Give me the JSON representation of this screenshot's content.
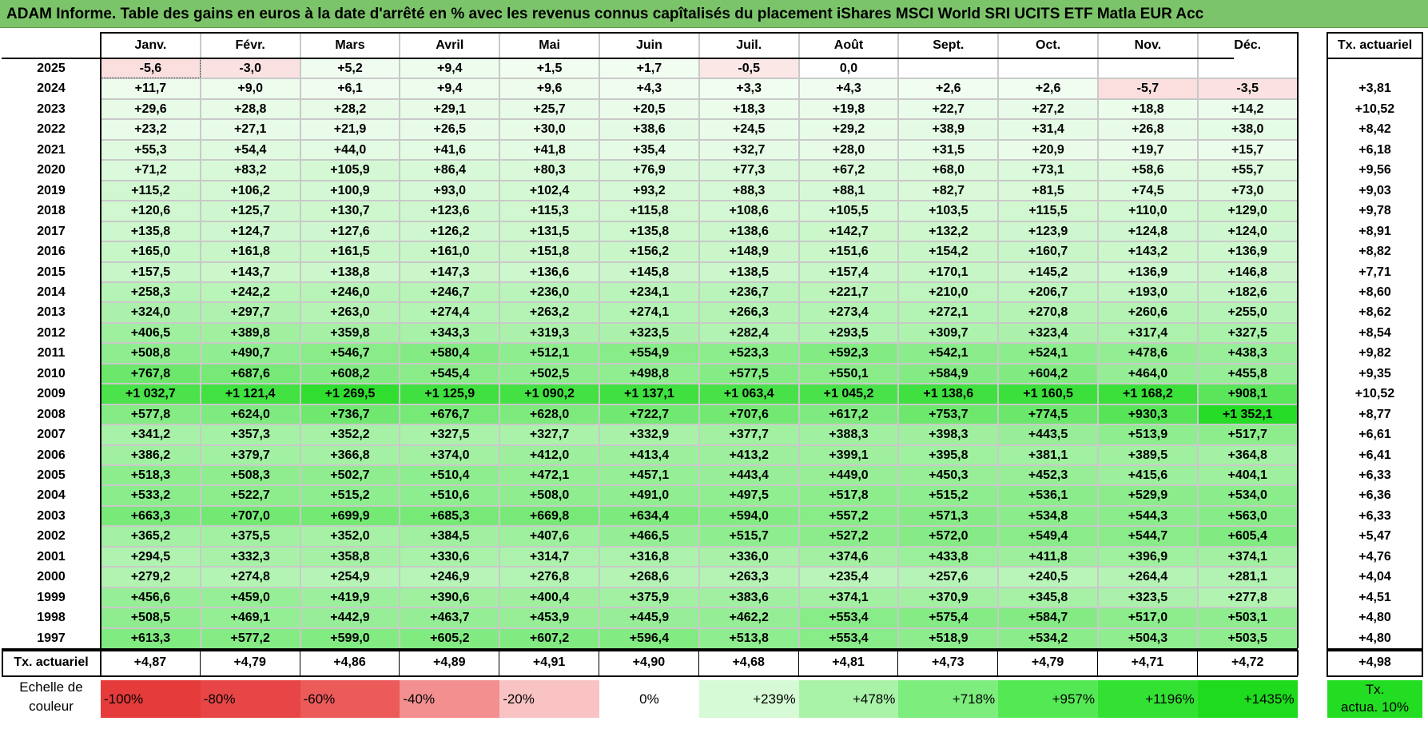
{
  "title": "ADAM Informe. Table des gains en euros à la date d'arrêté en % avec les revenus connus capîtalisés du placement iShares MSCI World SRI UCITS ETF Matla EUR Acc",
  "chart_data": {
    "type": "heatmap",
    "columns": [
      "Janv.",
      "Févr.",
      "Mars",
      "Avril",
      "Mai",
      "Juin",
      "Juil.",
      "Août",
      "Sept.",
      "Oct.",
      "Nov.",
      "Déc."
    ],
    "rate_header": "Tx. actuariel",
    "rows": [
      {
        "year": "2025",
        "values": [
          "-5,6",
          "-3,0",
          "+5,2",
          "+9,4",
          "+1,5",
          "+1,7",
          "-0,5",
          "0,0",
          "",
          "",
          "",
          ""
        ],
        "rate": ""
      },
      {
        "year": "2024",
        "values": [
          "+11,7",
          "+9,0",
          "+6,1",
          "+9,4",
          "+9,6",
          "+4,3",
          "+3,3",
          "+4,3",
          "+2,6",
          "+2,6",
          "-5,7",
          "-3,5"
        ],
        "rate": "+3,81"
      },
      {
        "year": "2023",
        "values": [
          "+29,6",
          "+28,8",
          "+28,2",
          "+29,1",
          "+25,7",
          "+20,5",
          "+18,3",
          "+19,8",
          "+22,7",
          "+27,2",
          "+18,8",
          "+14,2"
        ],
        "rate": "+10,52"
      },
      {
        "year": "2022",
        "values": [
          "+23,2",
          "+27,1",
          "+21,9",
          "+26,5",
          "+30,0",
          "+38,6",
          "+24,5",
          "+29,2",
          "+38,9",
          "+31,4",
          "+26,8",
          "+38,0"
        ],
        "rate": "+8,42"
      },
      {
        "year": "2021",
        "values": [
          "+55,3",
          "+54,4",
          "+44,0",
          "+41,6",
          "+41,8",
          "+35,4",
          "+32,7",
          "+28,0",
          "+31,5",
          "+20,9",
          "+19,7",
          "+15,7"
        ],
        "rate": "+6,18"
      },
      {
        "year": "2020",
        "values": [
          "+71,2",
          "+83,2",
          "+105,9",
          "+86,4",
          "+80,3",
          "+76,9",
          "+77,3",
          "+67,2",
          "+68,0",
          "+73,1",
          "+58,6",
          "+55,7"
        ],
        "rate": "+9,56"
      },
      {
        "year": "2019",
        "values": [
          "+115,2",
          "+106,2",
          "+100,9",
          "+93,0",
          "+102,4",
          "+93,2",
          "+88,3",
          "+88,1",
          "+82,7",
          "+81,5",
          "+74,5",
          "+73,0"
        ],
        "rate": "+9,03"
      },
      {
        "year": "2018",
        "values": [
          "+120,6",
          "+125,7",
          "+130,7",
          "+123,6",
          "+115,3",
          "+115,8",
          "+108,6",
          "+105,5",
          "+103,5",
          "+115,5",
          "+110,0",
          "+129,0"
        ],
        "rate": "+9,78"
      },
      {
        "year": "2017",
        "values": [
          "+135,8",
          "+124,7",
          "+127,6",
          "+126,2",
          "+131,5",
          "+135,8",
          "+138,6",
          "+142,7",
          "+132,2",
          "+123,9",
          "+124,8",
          "+124,0"
        ],
        "rate": "+8,91"
      },
      {
        "year": "2016",
        "values": [
          "+165,0",
          "+161,8",
          "+161,5",
          "+161,0",
          "+151,8",
          "+156,2",
          "+148,9",
          "+151,6",
          "+154,2",
          "+160,7",
          "+143,2",
          "+136,9"
        ],
        "rate": "+8,82"
      },
      {
        "year": "2015",
        "values": [
          "+157,5",
          "+143,7",
          "+138,8",
          "+147,3",
          "+136,6",
          "+145,8",
          "+138,5",
          "+157,4",
          "+170,1",
          "+145,2",
          "+136,9",
          "+146,8"
        ],
        "rate": "+7,71"
      },
      {
        "year": "2014",
        "values": [
          "+258,3",
          "+242,2",
          "+246,0",
          "+246,7",
          "+236,0",
          "+234,1",
          "+236,7",
          "+221,7",
          "+210,0",
          "+206,7",
          "+193,0",
          "+182,6"
        ],
        "rate": "+8,60"
      },
      {
        "year": "2013",
        "values": [
          "+324,0",
          "+297,7",
          "+263,0",
          "+274,4",
          "+263,2",
          "+274,1",
          "+266,3",
          "+273,4",
          "+272,1",
          "+270,8",
          "+260,6",
          "+255,0"
        ],
        "rate": "+8,62"
      },
      {
        "year": "2012",
        "values": [
          "+406,5",
          "+389,8",
          "+359,8",
          "+343,3",
          "+319,3",
          "+323,5",
          "+282,4",
          "+293,5",
          "+309,7",
          "+323,4",
          "+317,4",
          "+327,5"
        ],
        "rate": "+8,54"
      },
      {
        "year": "2011",
        "values": [
          "+508,8",
          "+490,7",
          "+546,7",
          "+580,4",
          "+512,1",
          "+554,9",
          "+523,3",
          "+592,3",
          "+542,1",
          "+524,1",
          "+478,6",
          "+438,3"
        ],
        "rate": "+9,82"
      },
      {
        "year": "2010",
        "values": [
          "+767,8",
          "+687,6",
          "+608,2",
          "+545,4",
          "+502,5",
          "+498,8",
          "+577,5",
          "+550,1",
          "+584,9",
          "+604,2",
          "+464,0",
          "+455,8"
        ],
        "rate": "+9,35"
      },
      {
        "year": "2009",
        "values": [
          "+1 032,7",
          "+1 121,4",
          "+1 269,5",
          "+1 125,9",
          "+1 090,2",
          "+1 137,1",
          "+1 063,4",
          "+1 045,2",
          "+1 138,6",
          "+1 160,5",
          "+1 168,2",
          "+908,1"
        ],
        "rate": "+10,52"
      },
      {
        "year": "2008",
        "values": [
          "+577,8",
          "+624,0",
          "+736,7",
          "+676,7",
          "+628,0",
          "+722,7",
          "+707,6",
          "+617,2",
          "+753,7",
          "+774,5",
          "+930,3",
          "+1 352,1"
        ],
        "rate": "+8,77"
      },
      {
        "year": "2007",
        "values": [
          "+341,2",
          "+357,3",
          "+352,2",
          "+327,5",
          "+327,7",
          "+332,9",
          "+377,7",
          "+388,3",
          "+398,3",
          "+443,5",
          "+513,9",
          "+517,7"
        ],
        "rate": "+6,61"
      },
      {
        "year": "2006",
        "values": [
          "+386,2",
          "+379,7",
          "+366,8",
          "+374,0",
          "+412,0",
          "+413,4",
          "+413,2",
          "+399,1",
          "+395,8",
          "+381,1",
          "+389,5",
          "+364,8"
        ],
        "rate": "+6,41"
      },
      {
        "year": "2005",
        "values": [
          "+518,3",
          "+508,3",
          "+502,7",
          "+510,4",
          "+472,1",
          "+457,1",
          "+443,4",
          "+449,0",
          "+450,3",
          "+452,3",
          "+415,6",
          "+404,1"
        ],
        "rate": "+6,33"
      },
      {
        "year": "2004",
        "values": [
          "+533,2",
          "+522,7",
          "+515,2",
          "+510,6",
          "+508,0",
          "+491,0",
          "+497,5",
          "+517,8",
          "+515,2",
          "+536,1",
          "+529,9",
          "+534,0"
        ],
        "rate": "+6,36"
      },
      {
        "year": "2003",
        "values": [
          "+663,3",
          "+707,0",
          "+699,9",
          "+685,3",
          "+669,8",
          "+634,4",
          "+594,0",
          "+557,2",
          "+571,3",
          "+534,8",
          "+544,3",
          "+563,0"
        ],
        "rate": "+6,33"
      },
      {
        "year": "2002",
        "values": [
          "+365,2",
          "+375,5",
          "+352,0",
          "+384,5",
          "+407,6",
          "+466,5",
          "+515,7",
          "+527,2",
          "+572,0",
          "+549,4",
          "+544,7",
          "+605,4"
        ],
        "rate": "+5,47"
      },
      {
        "year": "2001",
        "values": [
          "+294,5",
          "+332,3",
          "+358,8",
          "+330,6",
          "+314,7",
          "+316,8",
          "+336,0",
          "+374,6",
          "+433,8",
          "+411,8",
          "+396,9",
          "+374,1"
        ],
        "rate": "+4,76"
      },
      {
        "year": "2000",
        "values": [
          "+279,2",
          "+274,8",
          "+254,9",
          "+246,9",
          "+276,8",
          "+268,6",
          "+263,3",
          "+235,4",
          "+257,6",
          "+240,5",
          "+264,4",
          "+281,1"
        ],
        "rate": "+4,04"
      },
      {
        "year": "1999",
        "values": [
          "+456,6",
          "+459,0",
          "+419,9",
          "+390,6",
          "+400,4",
          "+375,9",
          "+383,6",
          "+374,1",
          "+370,9",
          "+345,8",
          "+323,5",
          "+277,8"
        ],
        "rate": "+4,51"
      },
      {
        "year": "1998",
        "values": [
          "+508,5",
          "+469,1",
          "+442,9",
          "+463,7",
          "+453,9",
          "+445,9",
          "+462,2",
          "+553,4",
          "+575,4",
          "+584,7",
          "+517,0",
          "+503,1"
        ],
        "rate": "+4,80"
      },
      {
        "year": "1997",
        "values": [
          "+613,3",
          "+577,2",
          "+599,0",
          "+605,2",
          "+607,2",
          "+596,4",
          "+513,8",
          "+553,4",
          "+518,9",
          "+534,2",
          "+504,3",
          "+503,5"
        ],
        "rate": "+4,80"
      }
    ],
    "footer": {
      "label": "Tx. actuariel",
      "values": [
        "+4,87",
        "+4,79",
        "+4,86",
        "+4,89",
        "+4,91",
        "+4,90",
        "+4,68",
        "+4,81",
        "+4,73",
        "+4,79",
        "+4,71",
        "+4,72"
      ],
      "rate": "+4,98"
    },
    "legend": {
      "label_line1": "Echelle de",
      "label_line2": "couleur",
      "items": [
        {
          "text": "-100%",
          "color": "#e63b3b",
          "align": "left"
        },
        {
          "text": "-80%",
          "color": "#e84646",
          "align": "left"
        },
        {
          "text": "-60%",
          "color": "#ec5a5a",
          "align": "left"
        },
        {
          "text": "-40%",
          "color": "#f38f8f",
          "align": "left"
        },
        {
          "text": "-20%",
          "color": "#f9c3c3",
          "align": "left"
        },
        {
          "text": "0%",
          "color": "#ffffff",
          "align": "center"
        },
        {
          "text": "+239%",
          "color": "#d6fad6",
          "align": "right"
        },
        {
          "text": "+478%",
          "color": "#a9f3a9",
          "align": "right"
        },
        {
          "text": "+718%",
          "color": "#7ded7d",
          "align": "right"
        },
        {
          "text": "+957%",
          "color": "#55e855",
          "align": "right"
        },
        {
          "text": "+1196%",
          "color": "#33e133",
          "align": "right"
        },
        {
          "text": "+1435%",
          "color": "#1edb1e",
          "align": "right"
        }
      ],
      "rate_item": {
        "line1": "Tx.",
        "line2": "actua. 10%",
        "color": "#22dd22"
      }
    },
    "color_scale": {
      "neg_full": "#e63b3b",
      "neutral": "#ffffff",
      "pos_full": "#1edb1e",
      "max_pct": 1435,
      "min_pct": -100
    }
  }
}
